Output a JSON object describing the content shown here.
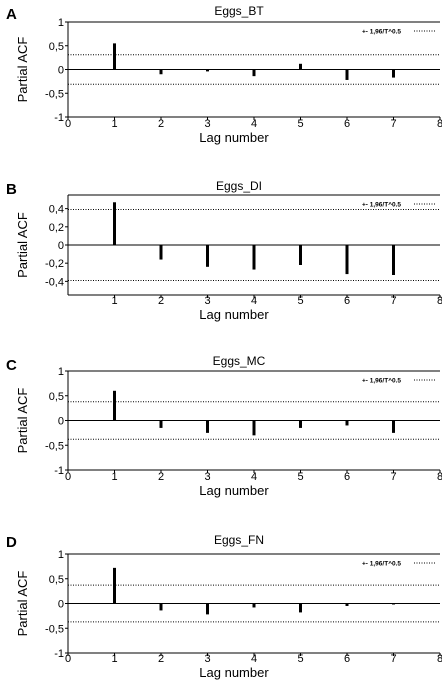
{
  "chart_data": [
    {
      "type": "bar",
      "panel_label": "A",
      "title": "Eggs_BT",
      "xlabel": "Lag number",
      "ylabel": "Partial ACF",
      "xlim": [
        0,
        8
      ],
      "ylim": [
        -1,
        1
      ],
      "xticks": [
        "0",
        "1",
        "2",
        "3",
        "4",
        "5",
        "6",
        "7",
        "8"
      ],
      "yticks": [
        "1",
        "0,5",
        "0",
        "-0,5",
        "-1"
      ],
      "ytick_values": [
        1,
        0.5,
        0,
        -0.5,
        -1
      ],
      "x": [
        1,
        2,
        3,
        4,
        5,
        6,
        7
      ],
      "values": [
        0.55,
        -0.1,
        -0.04,
        -0.14,
        0.12,
        -0.22,
        -0.17
      ],
      "confidence_band": 0.31,
      "legend": "+- 1,96/T^0.5",
      "legend_position": "top-right"
    },
    {
      "type": "bar",
      "panel_label": "B",
      "title": "Eggs_DI",
      "xlabel": "Lag number",
      "ylabel": "Partial ACF",
      "xlim": [
        0,
        8
      ],
      "ylim": [
        -0.55,
        0.55
      ],
      "xticks": [
        "1",
        "2",
        "3",
        "4",
        "5",
        "6",
        "7",
        "8"
      ],
      "yticks": [
        "0,4",
        "0,2",
        "0",
        "-0,2",
        "-0,4"
      ],
      "ytick_values": [
        0.4,
        0.2,
        0,
        -0.2,
        -0.4
      ],
      "x": [
        1,
        2,
        3,
        4,
        5,
        6,
        7
      ],
      "values": [
        0.47,
        -0.16,
        -0.24,
        -0.27,
        -0.22,
        -0.32,
        -0.33
      ],
      "confidence_band": 0.39,
      "legend": "+- 1,96/T^0.5",
      "legend_position": "top-right"
    },
    {
      "type": "bar",
      "panel_label": "C",
      "title": "Eggs_MC",
      "xlabel": "Lag number",
      "ylabel": "Partial ACF",
      "xlim": [
        0,
        8
      ],
      "ylim": [
        -1,
        1
      ],
      "xticks": [
        "0",
        "1",
        "2",
        "3",
        "4",
        "5",
        "6",
        "7",
        "8"
      ],
      "yticks": [
        "1",
        "0,5",
        "0",
        "-0,5",
        "-1"
      ],
      "ytick_values": [
        1,
        0.5,
        0,
        -0.5,
        -1
      ],
      "x": [
        1,
        2,
        3,
        4,
        5,
        6,
        7
      ],
      "values": [
        0.6,
        -0.15,
        -0.25,
        -0.3,
        -0.15,
        -0.1,
        -0.25
      ],
      "confidence_band": 0.38,
      "legend": "+- 1,96/T^0.5",
      "legend_position": "top-right"
    },
    {
      "type": "bar",
      "panel_label": "D",
      "title": "Eggs_FN",
      "xlabel": "Lag number",
      "ylabel": "Partial ACF",
      "xlim": [
        0,
        8
      ],
      "ylim": [
        -1,
        1
      ],
      "xticks": [
        "0",
        "1",
        "2",
        "3",
        "4",
        "5",
        "6",
        "7",
        "8"
      ],
      "yticks": [
        "1",
        "0,5",
        "0",
        "-0,5",
        "-1"
      ],
      "ytick_values": [
        1,
        0.5,
        0,
        -0.5,
        -1
      ],
      "x": [
        1,
        2,
        3,
        4,
        5,
        6,
        7
      ],
      "values": [
        0.72,
        -0.14,
        -0.22,
        -0.08,
        -0.18,
        -0.05,
        -0.02
      ],
      "confidence_band": 0.37,
      "legend": "+- 1,96/T^0.5",
      "legend_position": "top-right"
    }
  ]
}
